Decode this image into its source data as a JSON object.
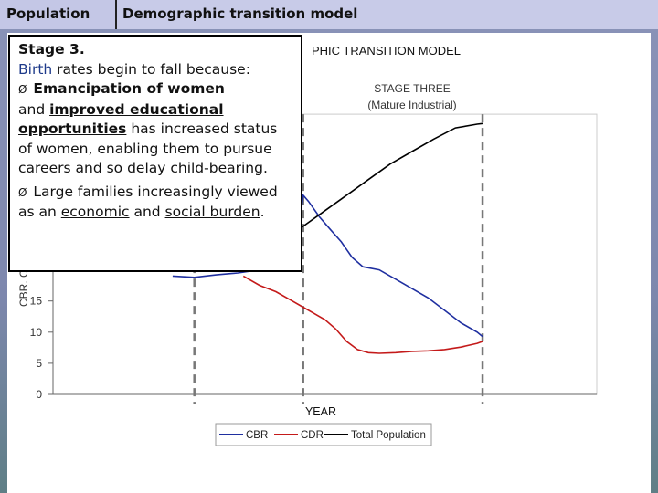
{
  "header": {
    "tab_label": "Population",
    "title": "Demographic transition model"
  },
  "overlay": {
    "stage": "Stage 3.",
    "intro_word": "Birth",
    "intro_rest": " rates begin to fall because:",
    "bullet_glyph": "Ø",
    "b1_strong": "Emancipation of women",
    "b1_and": "and ",
    "b1_u1": "improved educational",
    "b1_u2": "opportunities",
    "b1_rest": " has increased status of women, enabling them to pursue careers and so delay child-bearing.",
    "b2_pre": " Large families increasingly viewed as an ",
    "b2_u1": "economic",
    "b2_mid": " and ",
    "b2_u2": "social burden",
    "b2_end": "."
  },
  "chart_data": {
    "type": "line",
    "title": "DEMOGRAPHIC TRANSITION MODEL",
    "title_visible": "PHIC TRANSITION MODEL",
    "stage_label": [
      "STAGE THREE",
      "(Mature Industrial)"
    ],
    "xlabel": "YEAR",
    "ylabel": "CBR. C",
    "yticks": [
      0,
      5,
      10,
      15
    ],
    "ylim": [
      0,
      45
    ],
    "x_range": [
      0,
      100
    ],
    "stage_boundaries_x": [
      26,
      46,
      79
    ],
    "legend_position": "bottom-center",
    "colors": {
      "CBR": "#1f2fa0",
      "CDR": "#c41a1a",
      "Total Population": "#000000"
    },
    "series": [
      {
        "name": "CBR",
        "x": [
          22,
          26,
          30,
          34,
          38,
          42,
          45,
          46,
          47,
          49,
          51,
          53,
          55,
          57,
          60,
          63,
          66,
          69,
          72,
          75,
          78,
          79
        ],
        "y": [
          19,
          18.8,
          19.2,
          19.5,
          20,
          21,
          25,
          32,
          31,
          28.5,
          26.5,
          24.5,
          22,
          20.5,
          20,
          18.5,
          17,
          15.5,
          13.5,
          11.5,
          10,
          9.3
        ]
      },
      {
        "name": "CDR",
        "x": [
          35,
          38,
          41,
          44,
          46,
          48,
          50,
          52,
          54,
          56,
          58,
          60,
          63,
          66,
          69,
          72,
          75,
          78,
          79
        ],
        "y": [
          19,
          17.5,
          16.5,
          15,
          14,
          13,
          12,
          10.5,
          8.5,
          7.2,
          6.7,
          6.6,
          6.7,
          6.9,
          7.0,
          7.2,
          7.6,
          8.2,
          8.5
        ]
      },
      {
        "name": "Total Population",
        "x": [
          43,
          46,
          50,
          54,
          58,
          62,
          66,
          70,
          74,
          78,
          79
        ],
        "y": [
          25,
          27,
          29.5,
          32,
          34.5,
          37,
          39,
          41,
          42.8,
          43.4,
          43.5
        ]
      }
    ]
  }
}
